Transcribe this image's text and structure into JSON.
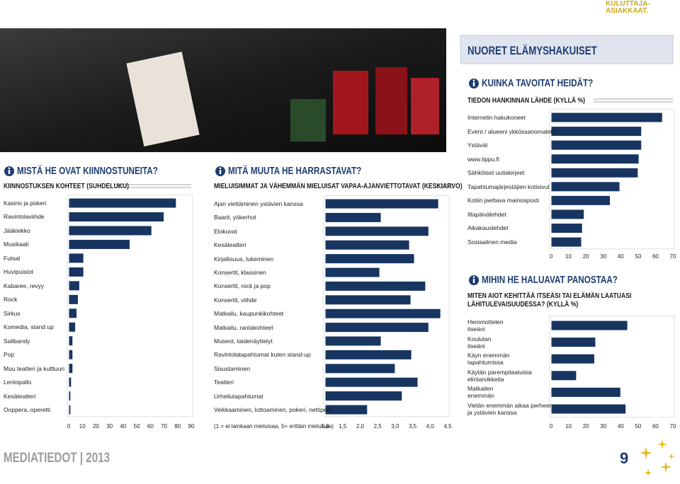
{
  "header": {
    "section": "KULUTTAJA-ASIAKKAAT.",
    "title": "NUORET ELÄMYSHAKUISET"
  },
  "chart_data": [
    {
      "type": "bar",
      "orientation": "horizontal",
      "heading": "MISTÄ HE OVAT KIINNOSTUNEITA?",
      "title": "KIINNOSTUKSEN KOHTEET (SUHDELUKU)",
      "categories": [
        "Kasino ja pokeri",
        "Ravintolaviihde",
        "Jääkiekko",
        "Musikaali",
        "Futsal",
        "Huvipuistot",
        "Kabaree, revyy",
        "Rock",
        "Sirkus",
        "Komedia, stand up",
        "Salibandy",
        "Pop",
        "Muu teatteri ja kulttuuri",
        "Lentopallo",
        "Kesäteatteri",
        "Ooppera, operetti"
      ],
      "values": [
        79,
        70,
        61,
        45,
        11,
        11,
        8,
        7,
        6,
        5,
        3,
        3,
        3,
        2,
        1.5,
        1.5
      ],
      "color": "#173560",
      "xlim": [
        0,
        90
      ],
      "xticks": [
        0,
        10,
        20,
        30,
        40,
        50,
        60,
        70,
        80,
        90
      ]
    },
    {
      "type": "bar",
      "orientation": "horizontal",
      "heading": "MITÄ MUUTA HE HARRASTAVAT?",
      "title": "MIELUISIMMAT JA VÄHEMMÄN MIELUISAT VAPAA-AJANVIETTOTAVAT (KESKIARVO)",
      "categories": [
        "Ajan viettäminen ystävien kanssa",
        "Baarit, yökerhot",
        "Elokuvat",
        "Kesäteatteri",
        "Kirjallisuus, lukeminen",
        "Konsertit, klassinen",
        "Konsertit, rock ja pop",
        "Konsertit, viihde",
        "Matkailu, kaupunkikohteet",
        "Matkailu, rantakohteet",
        "Museot, taidenäyttelyt",
        "Ravintolatapahtumat kuten stand-up",
        "Sisustaminen",
        "Teatteri",
        "Urheilutapahtumat",
        "Veikkaaminen, lottoaminen, pokeri, nettipelit"
      ],
      "values": [
        4.24,
        2.6,
        3.96,
        3.41,
        3.55,
        2.56,
        3.87,
        3.45,
        4.3,
        3.96,
        2.6,
        3.47,
        3.0,
        3.65,
        3.2,
        2.21
      ],
      "color": "#173560",
      "xlabel": "(1 = ei lainkaan mieluisaa, 5= erittäin mieluisaa)",
      "xlim": [
        1,
        4.5
      ],
      "xticks": [
        {
          "value": 1,
          "label": "1,0"
        },
        {
          "value": 1.5,
          "label": "1,5"
        },
        {
          "value": 2,
          "label": "2,0"
        },
        {
          "value": 2.5,
          "label": "2,5"
        },
        {
          "value": 3,
          "label": "3,0"
        },
        {
          "value": 3.5,
          "label": "3,5"
        },
        {
          "value": 4,
          "label": "4,0"
        },
        {
          "value": 4.5,
          "label": "4,5"
        }
      ]
    },
    {
      "type": "bar",
      "orientation": "horizontal",
      "heading": "KUINKA TAVOITAT HEIDÄT?",
      "title": "TIEDON HANKINNAN LÄHDE (KYLLÄ %)",
      "categories": [
        "Internetin hakukoneet",
        "Event / alueeni ykkössanomalehti",
        "Ystävät",
        "www.lippu.fi",
        "Sähköiset uutiskirjeet",
        "Tapahtumajärjestäjien kotisivut",
        "Kotiin jaettava mainosposti",
        "Iltapäivälehdet",
        "Aikakauslehdet",
        "Sosiaalinen media"
      ],
      "values": [
        64,
        52,
        52,
        50.5,
        50,
        39.5,
        34,
        19,
        18,
        17.5
      ],
      "color": "#173560",
      "xlim": [
        0,
        70
      ],
      "xticks": [
        0,
        10,
        20,
        30,
        40,
        50,
        60,
        70
      ]
    },
    {
      "type": "bar",
      "orientation": "horizontal",
      "heading": "MIHIN HE HALUAVAT PANOSTAA?",
      "title": "MITEN AIOT KEHITTÄÄ ITSEÄSI TAI ELÄMÄN LAATUASI LÄHITULEVAISUUDESSA? (KYLLÄ %)",
      "categories": [
        "Hemmottelen\nitseäni",
        "Koulutan\nitseäni",
        "Käyn enemmän\ntapahtumissa",
        "Käytän parempilaatuisia\nelintarvikkeita",
        "Matkailen\nenemmän",
        "Vietän enemmän aikaa perheen\nja ystävien kanssa"
      ],
      "values": [
        44,
        25.6,
        25,
        14.6,
        40,
        43
      ],
      "color": "#173560",
      "xlim": [
        0,
        70
      ],
      "xticks": [
        0,
        10,
        20,
        30,
        40,
        50,
        60,
        70
      ]
    }
  ],
  "footer": {
    "publication": "MEDIATIEDOT | 2013",
    "page": 9
  }
}
